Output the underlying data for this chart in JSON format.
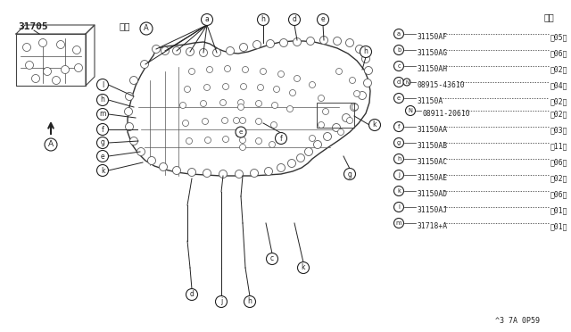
{
  "bg_color": "#ffffff",
  "line_color": "#222222",
  "part_number_label": "31705",
  "view_label": "矢視",
  "qty_label": "数量",
  "fig_code": "^3 7A 0P59",
  "legend_parts": [
    {
      "letter": "a",
      "part_no": "31150AF",
      "qty": "＜05＞",
      "sub": false
    },
    {
      "letter": "b",
      "part_no": "31150AG",
      "qty": "＜06＞",
      "sub": false
    },
    {
      "letter": "c",
      "part_no": "31150AH",
      "qty": "＜02＞",
      "sub": false
    },
    {
      "letter": "d",
      "part_no": "08915-43610",
      "qty": "＜04＞",
      "sub": false,
      "has_N": true
    },
    {
      "letter": "e",
      "part_no": "31150A",
      "qty": "＜02＞",
      "sub": false
    },
    {
      "letter": "N",
      "part_no": "08911-20610",
      "qty": "＜02＞",
      "sub": true
    },
    {
      "letter": "f",
      "part_no": "31150AA",
      "qty": "＜03＞",
      "sub": false
    },
    {
      "letter": "g",
      "part_no": "31150AB",
      "qty": "＜11＞",
      "sub": false
    },
    {
      "letter": "h",
      "part_no": "31150AC",
      "qty": "＜06＞",
      "sub": false
    },
    {
      "letter": "j",
      "part_no": "31150AE",
      "qty": "＜02＞",
      "sub": false
    },
    {
      "letter": "k",
      "part_no": "31150AD",
      "qty": "＜06＞",
      "sub": false
    },
    {
      "letter": "l",
      "part_no": "31150AJ",
      "qty": "＜01＞",
      "sub": false
    },
    {
      "letter": "m",
      "part_no": "31718+A",
      "qty": "＜01＞",
      "sub": false
    }
  ]
}
